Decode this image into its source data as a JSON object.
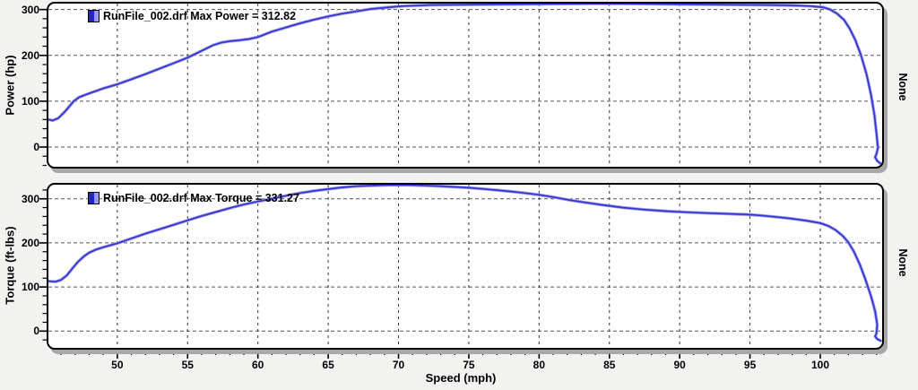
{
  "window": {
    "background": "#f2f2f0",
    "plot_background": "#ffffff",
    "shadow_color": "#a8a8a8"
  },
  "xaxis": {
    "label": "Speed (mph)"
  },
  "chart_data": [
    {
      "id": "power",
      "type": "line",
      "title": "",
      "xlabel": "Speed (mph)",
      "ylabel": "Power (hp)",
      "right_label": "None",
      "legend_label": "RunFile_002.drf Max Power = 312.82",
      "legend_swatch": [
        "#2424c9",
        "#9696fb"
      ],
      "legend_position": "top-left-inside",
      "grid": "dashed",
      "xlim": [
        45.1,
        104.4
      ],
      "ylim": [
        -43,
        313
      ],
      "xticks": [
        50,
        55,
        60,
        65,
        70,
        75,
        80,
        85,
        90,
        95,
        100
      ],
      "yticks": [
        0,
        100,
        200,
        300
      ],
      "x_minor_step": 1,
      "y_minor_step": 20,
      "series": [
        {
          "name": "RunFile_002.drf",
          "metric": "Max Power",
          "max_value": 312.82,
          "color": "#3636cd",
          "halo_color": "#9b9bf0",
          "points": [
            [
              45.1,
              60
            ],
            [
              45.4,
              58
            ],
            [
              45.8,
              63
            ],
            [
              46.3,
              78
            ],
            [
              46.9,
              100
            ],
            [
              47.3,
              109
            ],
            [
              48,
              117
            ],
            [
              49,
              128
            ],
            [
              50,
              137
            ],
            [
              51,
              148
            ],
            [
              52,
              159
            ],
            [
              53,
              171
            ],
            [
              54,
              183
            ],
            [
              55,
              195
            ],
            [
              55.6,
              204
            ],
            [
              56.2,
              213
            ],
            [
              56.8,
              222
            ],
            [
              57.4,
              228
            ],
            [
              58,
              231
            ],
            [
              58.7,
              233
            ],
            [
              59.4,
              236
            ],
            [
              60,
              240
            ],
            [
              60.5,
              246
            ],
            [
              61,
              252
            ],
            [
              62,
              261
            ],
            [
              63,
              270
            ],
            [
              64,
              278
            ],
            [
              65,
              285
            ],
            [
              66,
              291
            ],
            [
              67,
              296
            ],
            [
              68,
              301
            ],
            [
              69,
              304
            ],
            [
              70,
              307
            ],
            [
              71,
              308.5
            ],
            [
              72.5,
              310
            ],
            [
              74,
              310.5
            ],
            [
              76,
              311
            ],
            [
              78,
              311.5
            ],
            [
              80,
              312
            ],
            [
              82,
              312.5
            ],
            [
              84,
              312.8
            ],
            [
              86,
              312.6
            ],
            [
              88,
              312.2
            ],
            [
              90,
              311.5
            ],
            [
              92,
              311
            ],
            [
              94,
              310.5
            ],
            [
              96,
              310
            ],
            [
              98,
              309
            ],
            [
              99.3,
              307.5
            ],
            [
              100.2,
              305
            ],
            [
              100.7,
              300
            ],
            [
              101.2,
              291
            ],
            [
              101.7,
              277
            ],
            [
              102.1,
              258
            ],
            [
              102.5,
              233
            ],
            [
              102.9,
              200
            ],
            [
              103.3,
              158
            ],
            [
              103.6,
              115
            ],
            [
              103.85,
              70
            ],
            [
              104.0,
              30
            ],
            [
              104.1,
              -2
            ],
            [
              104.0,
              -15
            ],
            [
              103.9,
              -22
            ],
            [
              104.05,
              -30
            ],
            [
              104.2,
              -34
            ],
            [
              104.35,
              -38
            ]
          ]
        }
      ]
    },
    {
      "id": "torque",
      "type": "line",
      "title": "",
      "xlabel": "Speed (mph)",
      "ylabel": "Torque (ft-lbs)",
      "right_label": "None",
      "legend_label": "RunFile_002.drf Max Torque = 331.27",
      "legend_swatch": [
        "#2424c9",
        "#9696fb"
      ],
      "legend_position": "top-left-inside",
      "grid": "dashed",
      "xlim": [
        45.1,
        104.4
      ],
      "ylim": [
        -38,
        332
      ],
      "xticks": [
        50,
        55,
        60,
        65,
        70,
        75,
        80,
        85,
        90,
        95,
        100
      ],
      "yticks": [
        0,
        100,
        200,
        300
      ],
      "x_minor_step": 1,
      "y_minor_step": 20,
      "series": [
        {
          "name": "RunFile_002.drf",
          "metric": "Max Torque",
          "max_value": 331.27,
          "color": "#3636cd",
          "halo_color": "#9b9bf0",
          "points": [
            [
              45.1,
              113
            ],
            [
              45.6,
              112
            ],
            [
              46,
              116
            ],
            [
              46.4,
              126
            ],
            [
              46.8,
              142
            ],
            [
              47.2,
              157
            ],
            [
              47.6,
              169
            ],
            [
              48,
              178
            ],
            [
              48.5,
              185
            ],
            [
              49,
              190
            ],
            [
              50,
              199
            ],
            [
              51,
              210
            ],
            [
              52,
              221
            ],
            [
              53,
              231
            ],
            [
              54,
              241
            ],
            [
              55,
              251
            ],
            [
              56,
              261
            ],
            [
              57,
              270
            ],
            [
              58,
              279
            ],
            [
              59,
              287
            ],
            [
              60,
              294
            ],
            [
              61,
              300
            ],
            [
              62,
              307
            ],
            [
              63,
              313
            ],
            [
              64,
              318
            ],
            [
              65,
              322
            ],
            [
              66,
              326
            ],
            [
              67,
              328.5
            ],
            [
              68,
              330
            ],
            [
              69,
              331
            ],
            [
              70,
              331.3
            ],
            [
              71,
              331
            ],
            [
              72,
              330
            ],
            [
              73,
              328.5
            ],
            [
              74,
              327
            ],
            [
              75,
              325
            ],
            [
              76,
              322.5
            ],
            [
              77,
              319.5
            ],
            [
              78,
              316.5
            ],
            [
              79,
              313
            ],
            [
              80,
              309
            ],
            [
              81,
              304
            ],
            [
              82,
              298
            ],
            [
              83,
              293
            ],
            [
              84.5,
              286
            ],
            [
              86,
              280
            ],
            [
              87.5,
              275.5
            ],
            [
              89,
              272
            ],
            [
              90.5,
              269.5
            ],
            [
              92,
              267.5
            ],
            [
              93.5,
              266
            ],
            [
              95,
              264
            ],
            [
              96,
              261.5
            ],
            [
              97,
              258.5
            ],
            [
              98,
              255
            ],
            [
              99,
              250.5
            ],
            [
              100,
              245
            ],
            [
              100.6,
              238
            ],
            [
              101.1,
              229
            ],
            [
              101.6,
              216
            ],
            [
              102,
              201
            ],
            [
              102.4,
              180
            ],
            [
              102.8,
              152
            ],
            [
              103.2,
              118
            ],
            [
              103.6,
              80
            ],
            [
              103.9,
              45
            ],
            [
              104.05,
              15
            ],
            [
              104.0,
              -5
            ],
            [
              103.9,
              -12
            ],
            [
              104.05,
              -18
            ],
            [
              104.3,
              -22
            ]
          ]
        }
      ]
    }
  ]
}
